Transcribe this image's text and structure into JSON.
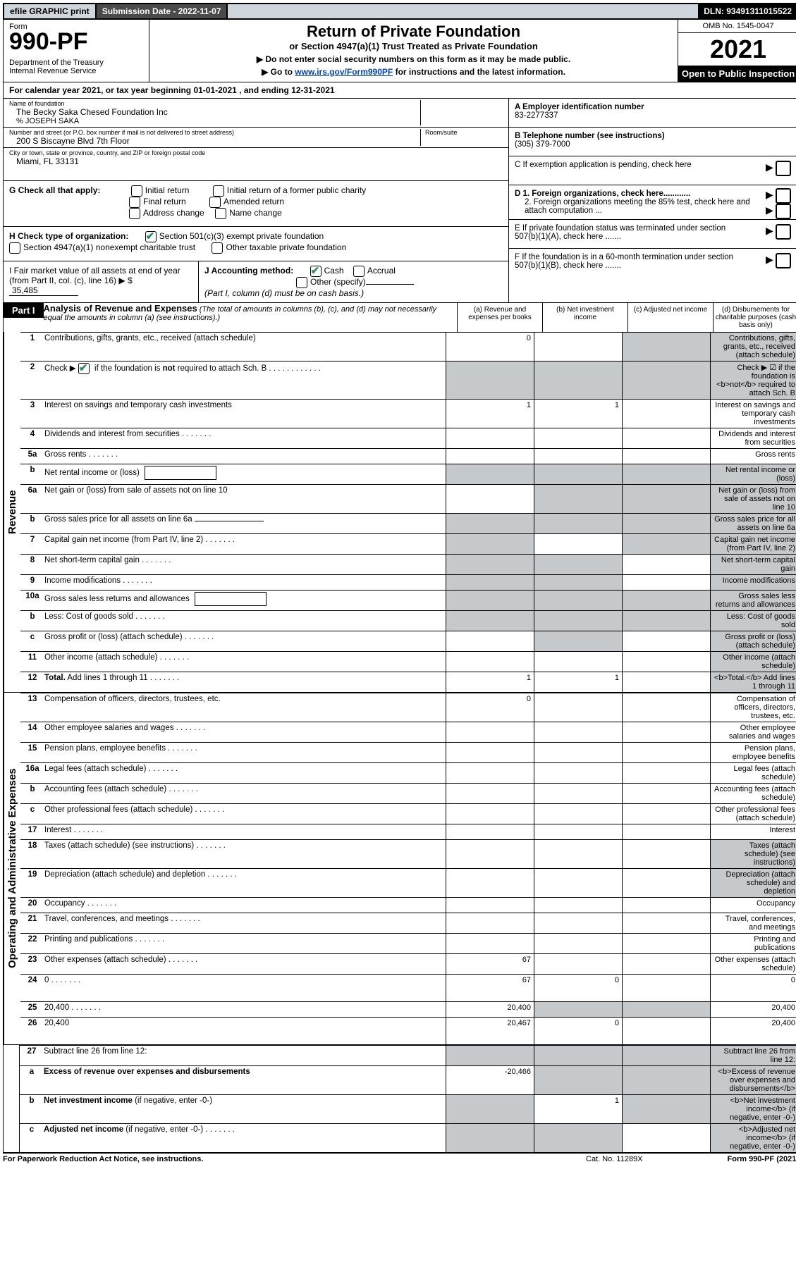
{
  "colors": {
    "topbar_bg": "#cfd7dc",
    "black": "#000000",
    "shade": "#c6c9cc",
    "link": "#0645ad",
    "check": "#2e8b57"
  },
  "top": {
    "efile": "efile GRAPHIC print",
    "submission": "Submission Date - 2022-11-07",
    "dln": "DLN: 93491311015522"
  },
  "header": {
    "form": "Form",
    "number": "990-PF",
    "dept": "Department of the Treasury\nInternal Revenue Service",
    "title": "Return of Private Foundation",
    "subtitle": "or Section 4947(a)(1) Trust Treated as Private Foundation",
    "note1": "▶ Do not enter social security numbers on this form as it may be made public.",
    "note2_pre": "▶ Go to ",
    "note2_link": "www.irs.gov/Form990PF",
    "note2_post": " for instructions and the latest information.",
    "omb": "OMB No. 1545-0047",
    "year": "2021",
    "open": "Open to Public Inspection"
  },
  "cal": "For calendar year 2021, or tax year beginning 01-01-2021                                , and ending 12-31-2021",
  "info": {
    "name_label": "Name of foundation",
    "name": "The Becky Saka Chesed Foundation Inc",
    "care_of": "% JOSEPH SAKA",
    "addr_label": "Number and street (or P.O. box number if mail is not delivered to street address)",
    "addr": "200 S Biscayne Blvd 7th Floor",
    "room_label": "Room/suite",
    "city_label": "City or town, state or province, country, and ZIP or foreign postal code",
    "city": "Miami, FL  33131",
    "a_label": "A Employer identification number",
    "a_val": "83-2277337",
    "b_label": "B Telephone number (see instructions)",
    "b_val": "(305) 379-7000",
    "c_label": "C If exemption application is pending, check here"
  },
  "g": {
    "label": "G Check all that apply:",
    "opts": [
      "Initial return",
      "Initial return of a former public charity",
      "Final return",
      "Amended return",
      "Address change",
      "Name change"
    ]
  },
  "h": {
    "label": "H Check type of organization:",
    "opt1": "Section 501(c)(3) exempt private foundation",
    "opt2": "Section 4947(a)(1) nonexempt charitable trust",
    "opt3": "Other taxable private foundation"
  },
  "i": {
    "label": "I Fair market value of all assets at end of year (from Part II, col. (c), line 16)",
    "val": "35,485"
  },
  "j": {
    "label": "J Accounting method:",
    "cash": "Cash",
    "accrual": "Accrual",
    "other": "Other (specify)",
    "note": "(Part I, column (d) must be on cash basis.)"
  },
  "d": {
    "d1": "D 1. Foreign organizations, check here............",
    "d2": "2. Foreign organizations meeting the 85% test, check here and attach computation ..."
  },
  "e": "E  If private foundation status was terminated under section 507(b)(1)(A), check here .......",
  "f": "F  If the foundation is in a 60-month termination under section 507(b)(1)(B), check here .......",
  "part1": {
    "label": "Part I",
    "title": "Analysis of Revenue and Expenses",
    "note": "(The total of amounts in columns (b), (c), and (d) may not necessarily equal the amounts in column (a) (see instructions).)",
    "cols": {
      "a": "(a)    Revenue and expenses per books",
      "b": "(b)    Net investment income",
      "c": "(c)    Adjusted net income",
      "d": "(d)    Disbursements for charitable purposes (cash basis only)"
    }
  },
  "side": {
    "rev": "Revenue",
    "exp": "Operating and Administrative Expenses"
  },
  "lines": [
    {
      "n": "1",
      "d": "Contributions, gifts, grants, etc., received (attach schedule)",
      "a": "0",
      "cs": true,
      "ds": true
    },
    {
      "n": "2",
      "d": "Check ▶ ☑ if the foundation is <b>not</b> required to attach Sch. B",
      "dotted": true,
      "as": true,
      "bs": true,
      "cs": true,
      "ds": true,
      "check": true
    },
    {
      "n": "3",
      "d": "Interest on savings and temporary cash investments",
      "a": "1",
      "b": "1"
    },
    {
      "n": "4",
      "d": "Dividends and interest from securities",
      "dotted": true
    },
    {
      "n": "5a",
      "d": "Gross rents",
      "dotted": true
    },
    {
      "n": "b",
      "d": "Net rental income or (loss)",
      "inlinebox": true,
      "as": true,
      "bs": true,
      "cs": true,
      "ds": true
    },
    {
      "n": "6a",
      "d": "Net gain or (loss) from sale of assets not on line 10",
      "bs": true,
      "cs": true,
      "ds": true
    },
    {
      "n": "b",
      "d": "Gross sales price for all assets on line 6a",
      "inlineinput": true,
      "as": true,
      "bs": true,
      "cs": true,
      "ds": true
    },
    {
      "n": "7",
      "d": "Capital gain net income (from Part IV, line 2)",
      "dotted": true,
      "as": true,
      "cs": true,
      "ds": true
    },
    {
      "n": "8",
      "d": "Net short-term capital gain",
      "dotted": true,
      "as": true,
      "bs": true,
      "ds": true
    },
    {
      "n": "9",
      "d": "Income modifications",
      "dotted": true,
      "as": true,
      "bs": true,
      "ds": true
    },
    {
      "n": "10a",
      "d": "Gross sales less returns and allowances",
      "inlinebox": true,
      "as": true,
      "bs": true,
      "cs": true,
      "ds": true
    },
    {
      "n": "b",
      "d": "Less: Cost of goods sold",
      "dotted": true,
      "inlinebox": true,
      "as": true,
      "bs": true,
      "cs": true,
      "ds": true
    },
    {
      "n": "c",
      "d": "Gross profit or (loss) (attach schedule)",
      "dotted": true,
      "bs": true,
      "ds": true
    },
    {
      "n": "11",
      "d": "Other income (attach schedule)",
      "dotted": true,
      "ds": true
    },
    {
      "n": "12",
      "d": "<b>Total.</b> Add lines 1 through 11",
      "dotted": true,
      "a": "1",
      "b": "1",
      "ds": true
    }
  ],
  "exp_lines": [
    {
      "n": "13",
      "d": "Compensation of officers, directors, trustees, etc.",
      "a": "0"
    },
    {
      "n": "14",
      "d": "Other employee salaries and wages",
      "dotted": true
    },
    {
      "n": "15",
      "d": "Pension plans, employee benefits",
      "dotted": true
    },
    {
      "n": "16a",
      "d": "Legal fees (attach schedule)",
      "dotted": true
    },
    {
      "n": "b",
      "d": "Accounting fees (attach schedule)",
      "dotted": true
    },
    {
      "n": "c",
      "d": "Other professional fees (attach schedule)",
      "dotted": true
    },
    {
      "n": "17",
      "d": "Interest",
      "dotted": true
    },
    {
      "n": "18",
      "d": "Taxes (attach schedule) (see instructions)",
      "dotted": true,
      "ds": true
    },
    {
      "n": "19",
      "d": "Depreciation (attach schedule) and depletion",
      "dotted": true,
      "ds": true
    },
    {
      "n": "20",
      "d": "Occupancy",
      "dotted": true
    },
    {
      "n": "21",
      "d": "Travel, conferences, and meetings",
      "dotted": true
    },
    {
      "n": "22",
      "d": "Printing and publications",
      "dotted": true
    },
    {
      "n": "23",
      "d": "Other expenses (attach schedule)",
      "dotted": true,
      "a": "67"
    },
    {
      "n": "24",
      "d": "0",
      "dotted": true,
      "a": "67",
      "b": "0",
      "tall": true
    },
    {
      "n": "25",
      "d": "20,400",
      "dotted": true,
      "a": "20,400",
      "bs": true,
      "cs": true
    },
    {
      "n": "26",
      "d": "20,400",
      "a": "20,467",
      "b": "0",
      "tall": true
    }
  ],
  "net_lines": [
    {
      "n": "27",
      "d": "Subtract line 26 from line 12:",
      "as": true,
      "bs": true,
      "cs": true,
      "ds": true
    },
    {
      "n": "a",
      "d": "<b>Excess of revenue over expenses and disbursements</b>",
      "a": "-20,466",
      "bs": true,
      "cs": true,
      "ds": true
    },
    {
      "n": "b",
      "d": "<b>Net investment income</b> (if negative, enter -0-)",
      "as": true,
      "b": "1",
      "cs": true,
      "ds": true
    },
    {
      "n": "c",
      "d": "<b>Adjusted net income</b> (if negative, enter -0-)",
      "dotted": true,
      "as": true,
      "bs": true,
      "ds": true
    }
  ],
  "footer": {
    "left": "For Paperwork Reduction Act Notice, see instructions.",
    "mid": "Cat. No. 11289X",
    "right": "Form 990-PF (2021)"
  }
}
